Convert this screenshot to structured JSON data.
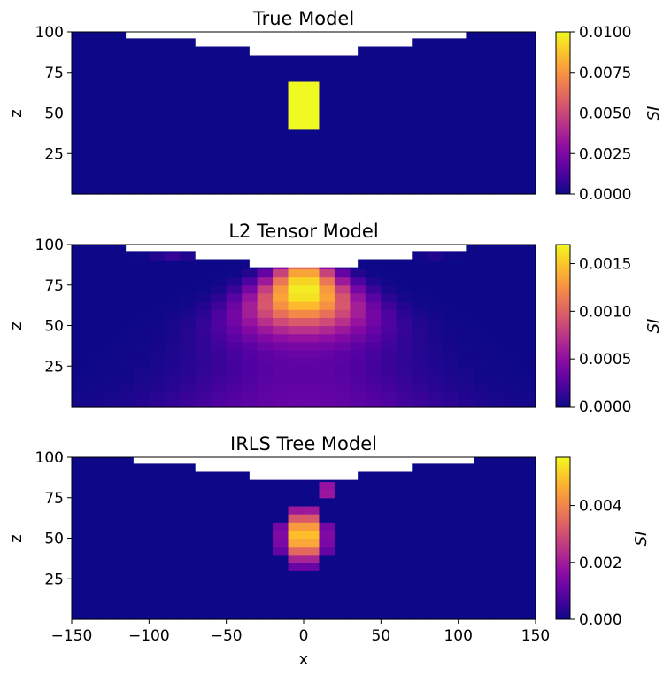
{
  "figure": {
    "cmap": "plasma",
    "xlabel": "x",
    "ylabel": "z",
    "colorbar_label": "SI",
    "topography_color": "#ffffff"
  },
  "chart_data": [
    {
      "type": "heatmap",
      "title": "True Model",
      "xlabel": "",
      "ylabel": "z",
      "xlim": [
        -150,
        150
      ],
      "ylim": [
        0,
        100
      ],
      "xticks": [],
      "yticks": [
        "25",
        "50",
        "75",
        "100"
      ],
      "show_xticks": false,
      "colorbar": {
        "label": "SI",
        "min": 0,
        "max": 0.01,
        "ticks": [
          "0.0000",
          "0.0025",
          "0.0050",
          "0.0075",
          "0.0100"
        ]
      },
      "anomaly": {
        "kind": "block",
        "center_x": 0,
        "center_z": 56,
        "radius": 15,
        "peak": 0.01
      },
      "topography": [
        [
          -150,
          100
        ],
        [
          -115,
          100
        ],
        [
          -115,
          96
        ],
        [
          -70,
          96
        ],
        [
          -70,
          91
        ],
        [
          -35,
          91
        ],
        [
          -35,
          85.5
        ],
        [
          35,
          85.5
        ],
        [
          35,
          91
        ],
        [
          70,
          91
        ],
        [
          70,
          96
        ],
        [
          105,
          96
        ],
        [
          105,
          100
        ],
        [
          150,
          100
        ]
      ]
    },
    {
      "type": "heatmap",
      "title": "L2 Tensor Model",
      "xlabel": "",
      "ylabel": "z",
      "xlim": [
        -150,
        150
      ],
      "ylim": [
        0,
        100
      ],
      "xticks": [],
      "yticks": [
        "25",
        "50",
        "75",
        "100"
      ],
      "show_xticks": false,
      "colorbar": {
        "label": "SI",
        "min": 0,
        "max": 0.0017,
        "ticks": [
          "0.0000",
          "0.0005",
          "0.0010",
          "0.0015"
        ]
      },
      "anomaly": {
        "kind": "smooth",
        "center_x": 0,
        "center_z": 72,
        "peak": 0.0017
      },
      "topography": [
        [
          -150,
          100
        ],
        [
          -115,
          100
        ],
        [
          -115,
          96
        ],
        [
          -70,
          96
        ],
        [
          -70,
          91
        ],
        [
          -35,
          91
        ],
        [
          -35,
          86
        ],
        [
          35,
          86
        ],
        [
          35,
          91
        ],
        [
          70,
          91
        ],
        [
          70,
          96
        ],
        [
          105,
          96
        ],
        [
          105,
          100
        ],
        [
          150,
          100
        ]
      ]
    },
    {
      "type": "heatmap",
      "title": "IRLS Tree Model",
      "xlabel": "x",
      "ylabel": "z",
      "xlim": [
        -150,
        150
      ],
      "ylim": [
        0,
        100
      ],
      "xticks": [
        "−150",
        "−100",
        "−50",
        "0",
        "50",
        "100",
        "150"
      ],
      "xtick_values": [
        -150,
        -100,
        -50,
        0,
        50,
        100,
        150
      ],
      "yticks": [
        "25",
        "50",
        "75",
        "100"
      ],
      "show_xticks": true,
      "colorbar": {
        "label": "SI",
        "min": 0,
        "max": 0.0057,
        "ticks": [
          "0.000",
          "0.002",
          "0.004"
        ]
      },
      "anomaly": {
        "kind": "compact",
        "center_x": 0,
        "center_z": 52,
        "peak": 0.0057
      },
      "topography": [
        [
          -150,
          100
        ],
        [
          -110,
          100
        ],
        [
          -110,
          96
        ],
        [
          -70,
          96
        ],
        [
          -70,
          91
        ],
        [
          -35,
          91
        ],
        [
          -35,
          86
        ],
        [
          35,
          86
        ],
        [
          35,
          91
        ],
        [
          70,
          91
        ],
        [
          70,
          96
        ],
        [
          110,
          96
        ],
        [
          110,
          100
        ],
        [
          150,
          100
        ]
      ]
    }
  ]
}
